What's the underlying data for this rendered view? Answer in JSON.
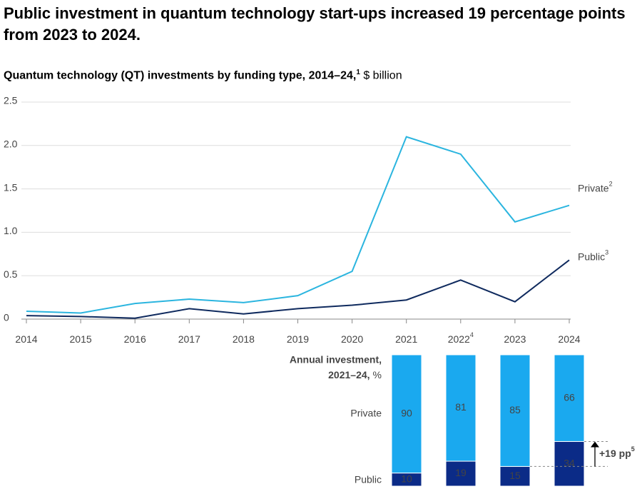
{
  "chart_data": [
    {
      "type": "line",
      "title": "Public investment in quantum technology start-ups increased 19 percentage points from 2023 to 2024.",
      "subtitle": "Quantum technology (QT) investments by funding type, 2014–24,",
      "subtitle_note": "1",
      "unit": "$ billion",
      "categories": [
        "2014",
        "2015",
        "2016",
        "2017",
        "2018",
        "2019",
        "2020",
        "2021",
        "2022",
        "2023",
        "2024"
      ],
      "category_notes": [
        null,
        null,
        null,
        null,
        null,
        null,
        null,
        null,
        "4",
        null,
        null
      ],
      "series": [
        {
          "name": "Private",
          "note": "2",
          "color": "#2bb5df",
          "values": [
            0.09,
            0.07,
            0.18,
            0.23,
            0.19,
            0.27,
            0.55,
            2.1,
            1.9,
            1.12,
            1.31
          ]
        },
        {
          "name": "Public",
          "note": "3",
          "color": "#0f2a5e",
          "values": [
            0.04,
            0.03,
            0.01,
            0.12,
            0.06,
            0.12,
            0.16,
            0.22,
            0.45,
            0.2,
            0.68
          ]
        }
      ],
      "ylim": [
        0,
        2.5
      ],
      "yticks": [
        0,
        0.5,
        {
          "value": 1,
          "label": "1.0"
        },
        1.5,
        {
          "value": 2,
          "label": "2.0"
        },
        2.5
      ],
      "grid": true
    },
    {
      "type": "stacked-bar",
      "title": "Annual investment,",
      "title_line2": "2021–24,",
      "unit": "%",
      "ylim": [
        0,
        100
      ],
      "series": [
        {
          "name": "Public",
          "color": "#0b2b87",
          "values": [
            10,
            19,
            15,
            34
          ]
        },
        {
          "name": "Private",
          "color": "#1aa9ef",
          "values": [
            90,
            81,
            85,
            66
          ]
        }
      ],
      "annotation": "+19 pp",
      "annotation_note": "5"
    }
  ]
}
